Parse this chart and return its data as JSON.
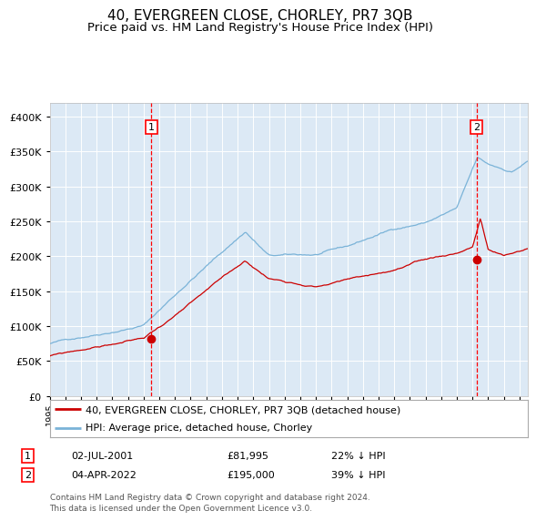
{
  "title": "40, EVERGREEN CLOSE, CHORLEY, PR7 3QB",
  "subtitle": "Price paid vs. HM Land Registry's House Price Index (HPI)",
  "title_fontsize": 11,
  "subtitle_fontsize": 9.5,
  "bg_color": "#dce9f5",
  "fig_bg_color": "#ffffff",
  "hpi_color": "#7ab3d8",
  "price_color": "#cc0000",
  "ylim": [
    0,
    420000
  ],
  "yticks": [
    0,
    50000,
    100000,
    150000,
    200000,
    250000,
    300000,
    350000,
    400000
  ],
  "sale1_price": 81995,
  "sale1_x": 2001.5,
  "sale2_price": 195000,
  "sale2_x": 2022.25,
  "legend_entry1": "40, EVERGREEN CLOSE, CHORLEY, PR7 3QB (detached house)",
  "legend_entry2": "HPI: Average price, detached house, Chorley",
  "table_row1": [
    "1",
    "02-JUL-2001",
    "£81,995",
    "22% ↓ HPI"
  ],
  "table_row2": [
    "2",
    "04-APR-2022",
    "£195,000",
    "39% ↓ HPI"
  ],
  "footer": "Contains HM Land Registry data © Crown copyright and database right 2024.\nThis data is licensed under the Open Government Licence v3.0.",
  "xmin": 1995,
  "xmax": 2025.5
}
